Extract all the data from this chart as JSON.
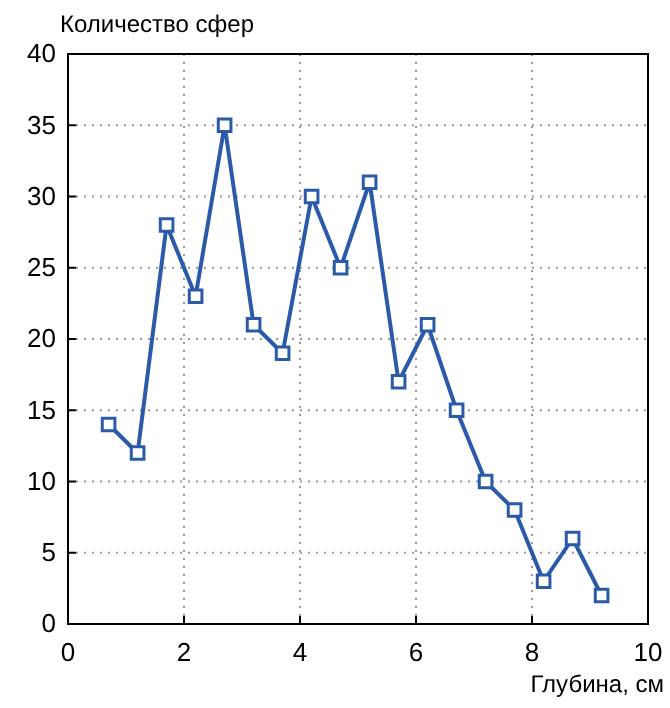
{
  "chart_data": {
    "type": "line",
    "ylabel": "Количество сфер",
    "xlabel": "Глубина, см",
    "x": [
      0.7,
      1.2,
      1.7,
      2.2,
      2.7,
      3.2,
      3.7,
      4.2,
      4.7,
      5.2,
      5.7,
      6.2,
      6.7,
      7.2,
      7.7,
      8.2,
      8.7,
      9.2
    ],
    "series": [
      {
        "color": "#2b5ba8",
        "values": [
          14,
          12,
          28,
          23,
          35,
          21,
          19,
          30,
          25,
          31,
          17,
          21,
          15,
          10,
          8,
          3,
          6,
          2
        ]
      }
    ],
    "xlim": [
      0,
      10
    ],
    "xticks": [
      0,
      2,
      4,
      6,
      8,
      10
    ],
    "ylim": [
      0,
      40
    ],
    "yticks": [
      0,
      5,
      10,
      15,
      20,
      25,
      30,
      35,
      40
    ],
    "grid": true,
    "marker": "square",
    "line_style": "solid"
  }
}
